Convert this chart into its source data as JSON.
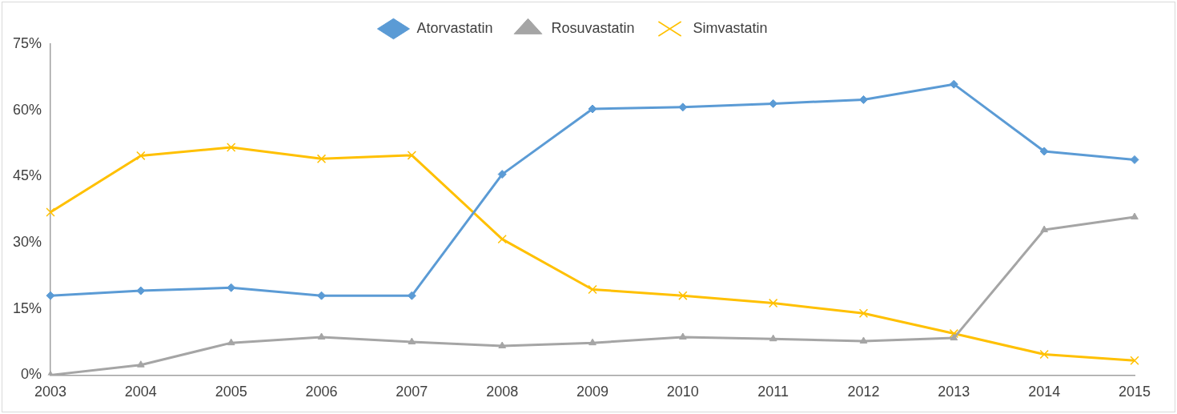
{
  "chart_data": {
    "type": "line",
    "categories": [
      "2003",
      "2004",
      "2005",
      "2006",
      "2007",
      "2008",
      "2009",
      "2010",
      "2011",
      "2012",
      "2013",
      "2014",
      "2015"
    ],
    "series": [
      {
        "name": "Atorvastatin",
        "color": "#5b9bd5",
        "marker": "diamond",
        "values": [
          18.0,
          19.1,
          19.8,
          18.0,
          18.0,
          45.5,
          60.3,
          60.7,
          61.5,
          62.4,
          65.9,
          50.7,
          48.8
        ]
      },
      {
        "name": "Rosuvastatin",
        "color": "#a5a5a5",
        "marker": "triangle",
        "values": [
          0,
          2.3,
          7.3,
          8.6,
          7.5,
          6.6,
          7.3,
          8.6,
          8.2,
          7.7,
          8.4,
          32.9,
          35.8
        ]
      },
      {
        "name": "Simvastatin",
        "color": "#ffc000",
        "marker": "cross",
        "values": [
          36.9,
          49.7,
          51.6,
          49.0,
          49.8,
          30.8,
          19.4,
          18.0,
          16.3,
          14.0,
          9.4,
          4.7,
          3.3
        ]
      }
    ],
    "ylim": [
      0,
      75
    ],
    "yticks": [
      {
        "value": 0,
        "label": "0%"
      },
      {
        "value": 15,
        "label": "15%"
      },
      {
        "value": 30,
        "label": "30%"
      },
      {
        "value": 45,
        "label": "45%"
      },
      {
        "value": 60,
        "label": "60%"
      },
      {
        "value": 75,
        "label": "75%"
      }
    ],
    "grid": false,
    "legend": "top",
    "line_style": "solid"
  }
}
